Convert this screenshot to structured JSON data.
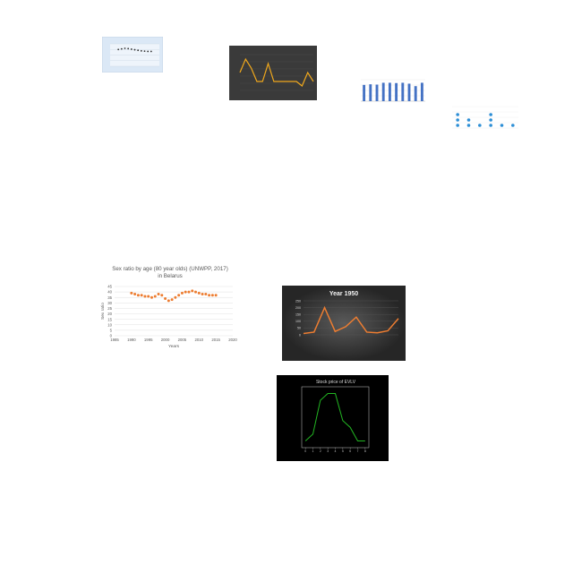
{
  "charts": [
    {
      "id": "c1",
      "theme": "light-blue",
      "type": "scatter",
      "title": "",
      "xlabel": "",
      "ylabel": "",
      "x": [
        1990,
        1992,
        1994,
        1996,
        1998,
        2000,
        2002,
        2004,
        2006,
        2008,
        2010
      ],
      "y": [
        60,
        62,
        64,
        63,
        61,
        59,
        57,
        55,
        54,
        53,
        53
      ],
      "xlim": [
        1985,
        2015
      ],
      "ylim": [
        0,
        80
      ],
      "color": "#333333"
    },
    {
      "id": "c2",
      "theme": "dark",
      "type": "line",
      "title": "",
      "xlabel": "",
      "ylabel": "",
      "y": [
        3,
        6,
        4,
        1,
        1,
        5,
        1,
        1,
        1,
        1,
        1,
        0,
        3,
        1
      ],
      "ylim": [
        -1,
        7
      ],
      "color": "#f0a81c"
    },
    {
      "id": "c3",
      "theme": "light",
      "type": "bar",
      "title": "",
      "xlabel": "",
      "ylabel": "",
      "values": [
        0.53,
        0.55,
        0.54,
        0.6,
        0.6,
        0.59,
        0.6,
        0.57,
        0.49,
        0.6
      ],
      "ylim": [
        0,
        0.7
      ],
      "color": "#4472c4"
    },
    {
      "id": "c4",
      "theme": "light",
      "type": "dot",
      "title": "",
      "xlabel": "",
      "ylabel": "",
      "values": [
        3,
        2,
        1,
        3,
        1,
        1
      ],
      "ylim": [
        0,
        4
      ],
      "color": "#2e8fd6"
    },
    {
      "id": "c5",
      "theme": "light",
      "type": "scatter",
      "title": "Sex ratio by age (80 year olds) (UNWPP, 2017) in Belarus",
      "xlabel": "Years",
      "ylabel": "Sex ratio",
      "x": [
        1990,
        1991,
        1992,
        1993,
        1994,
        1995,
        1996,
        1997,
        1998,
        1999,
        2000,
        2001,
        2002,
        2003,
        2004,
        2005,
        2006,
        2007,
        2008,
        2009,
        2010,
        2011,
        2012,
        2013,
        2014,
        2015
      ],
      "y": [
        39,
        38,
        37,
        37,
        36,
        36,
        35,
        36,
        38,
        37,
        34,
        32,
        33,
        35,
        37,
        39,
        40,
        40,
        41,
        40,
        39,
        38,
        38,
        37,
        37,
        37
      ],
      "xlim": [
        1985,
        2020
      ],
      "ylim": [
        0,
        45
      ],
      "xticks": [
        1985,
        1990,
        1995,
        2000,
        2005,
        2010,
        2015,
        2020
      ],
      "yticks": [
        0,
        5,
        10,
        15,
        20,
        25,
        30,
        35,
        40,
        45
      ],
      "color": "#ed7d31"
    },
    {
      "id": "c6",
      "theme": "dark",
      "type": "line",
      "title": "Year 1950",
      "xlabel": "",
      "ylabel": "",
      "y": [
        10,
        20,
        200,
        25,
        60,
        130,
        20,
        15,
        30,
        120
      ],
      "ylim": [
        0,
        250
      ],
      "yticks": [
        0,
        50,
        100,
        150,
        200,
        250
      ],
      "color": "#ed7d31"
    },
    {
      "id": "c7",
      "theme": "black",
      "type": "line",
      "title": "Stock price of EVLV",
      "xlabel": "",
      "ylabel": "",
      "x": [
        0,
        1,
        2,
        3,
        4,
        5,
        6,
        7,
        8
      ],
      "y": [
        7.45,
        7.5,
        7.75,
        7.8,
        7.8,
        7.6,
        7.55,
        7.45,
        7.45
      ],
      "xlim": [
        -0.5,
        8.5
      ],
      "ylim": [
        7.4,
        7.85
      ],
      "xticks": [
        0,
        1,
        2,
        3,
        4,
        5,
        6,
        7,
        8
      ],
      "color": "#22b522"
    }
  ]
}
